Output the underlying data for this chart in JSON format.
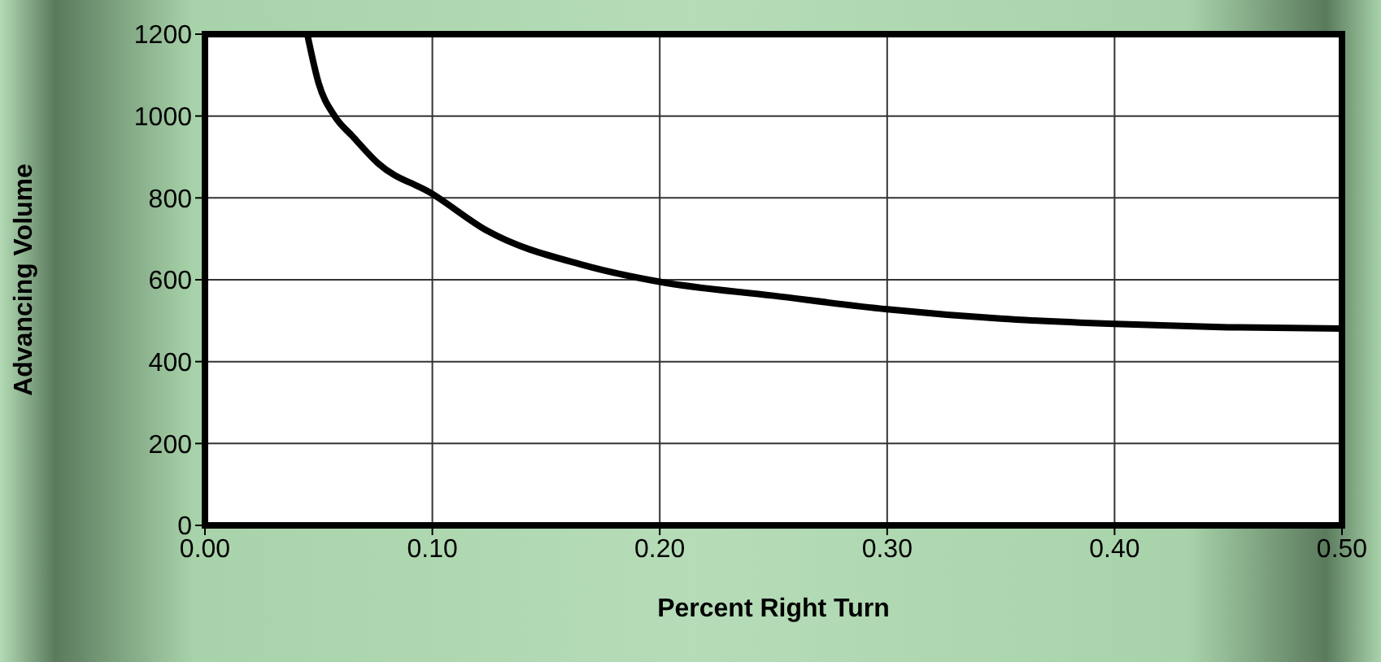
{
  "chart_data": {
    "type": "line",
    "xlabel": "Percent Right Turn",
    "ylabel": "Advancing Volume",
    "x": [
      0.045,
      0.05,
      0.057,
      0.065,
      0.076,
      0.1,
      0.124,
      0.167,
      0.2,
      0.25,
      0.3,
      0.35,
      0.4,
      0.45,
      0.5
    ],
    "series": [
      {
        "color": "#000000",
        "values": [
          1200,
          1080,
          1000,
          950,
          885,
          810,
          720,
          635,
          595,
          561,
          528,
          505,
          492,
          484,
          481
        ]
      }
    ],
    "xlim": [
      0,
      0.5
    ],
    "xticks": [
      {
        "value": 0,
        "label": "0.00"
      },
      {
        "value": 0.1,
        "label": "0.10"
      },
      {
        "value": 0.2,
        "label": "0.20"
      },
      {
        "value": 0.3,
        "label": "0.30"
      },
      {
        "value": 0.4,
        "label": "0.40"
      },
      {
        "value": 0.5,
        "label": "0.50"
      }
    ],
    "ylim": [
      0,
      1200
    ],
    "yticks": [
      0,
      200,
      400,
      600,
      800,
      1000,
      1200
    ],
    "grid": true,
    "legend": false,
    "marker": "none",
    "line_style": "solid"
  }
}
